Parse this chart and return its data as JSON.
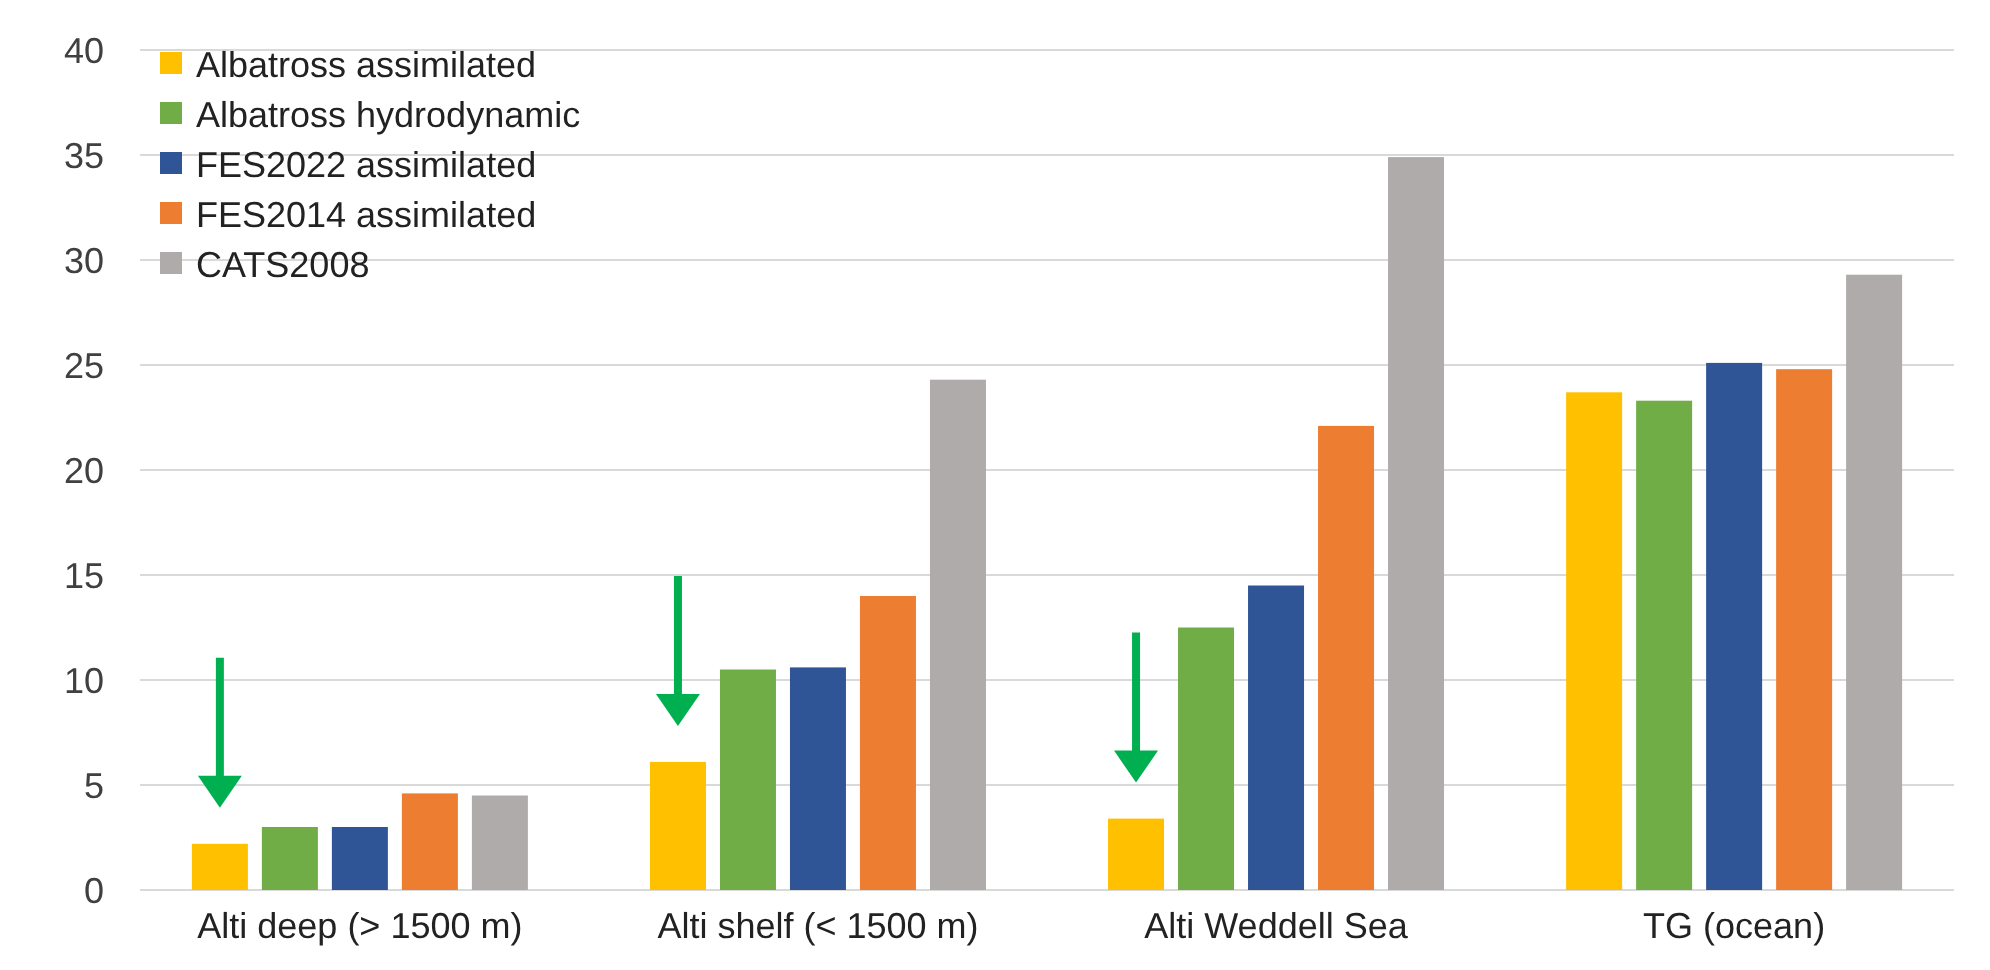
{
  "chart_data": {
    "type": "bar",
    "categories": [
      "Alti deep (> 1500 m)",
      "Alti shelf (< 1500 m)",
      "Alti Weddell Sea",
      "TG (ocean)"
    ],
    "series": [
      {
        "name": "Albatross assimilated",
        "color": "#ffc000",
        "values": [
          2.2,
          6.1,
          3.4,
          23.7
        ]
      },
      {
        "name": "Albatross hydrodynamic",
        "color": "#70ad47",
        "values": [
          3.0,
          10.5,
          12.5,
          23.3
        ]
      },
      {
        "name": "FES2022 assimilated",
        "color": "#2f5597",
        "values": [
          3.0,
          10.6,
          14.5,
          25.1
        ]
      },
      {
        "name": "FES2014 assimilated",
        "color": "#ed7d31",
        "values": [
          4.6,
          14.0,
          22.1,
          24.8
        ]
      },
      {
        "name": "CATS2008",
        "color": "#afabab",
        "values": [
          4.5,
          24.3,
          34.9,
          29.3
        ]
      }
    ],
    "ylim": [
      0,
      40
    ],
    "yticks": [
      0,
      5,
      10,
      15,
      20,
      25,
      30,
      35,
      40
    ],
    "grid": "y",
    "legend": "top left"
  }
}
